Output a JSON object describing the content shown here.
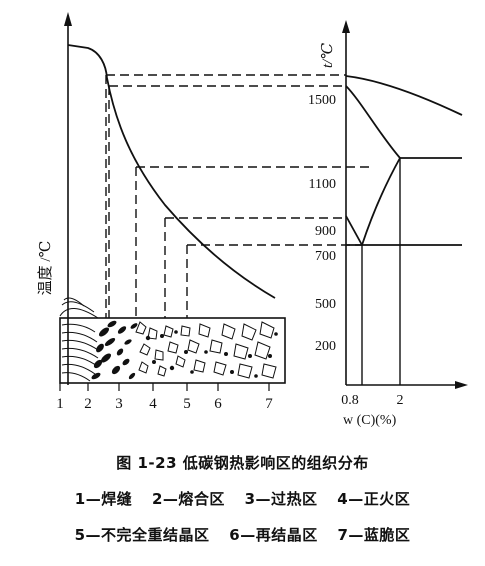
{
  "figure": {
    "left_axis_label": "温度 /℃",
    "right_axis_label": "t/℃",
    "right_axis_ticks": [
      "1500",
      "1100",
      "900",
      "700",
      "500",
      "200"
    ],
    "bottom_axis_ticks": [
      "0.8",
      "2"
    ],
    "bottom_axis_label": "w (C)(%)",
    "zone_numbers": [
      "1",
      "2",
      "3",
      "4",
      "5",
      "6",
      "7"
    ]
  },
  "caption": {
    "title": "图 1-23   低碳钢热影响区的组织分布",
    "legend_line_1": [
      "1—焊缝",
      "2—熔合区",
      "3—过热区",
      "4—正火区"
    ],
    "legend_line_2": [
      "5—不完全重结晶区",
      "6—再结晶区",
      "7—蓝脆区"
    ]
  }
}
